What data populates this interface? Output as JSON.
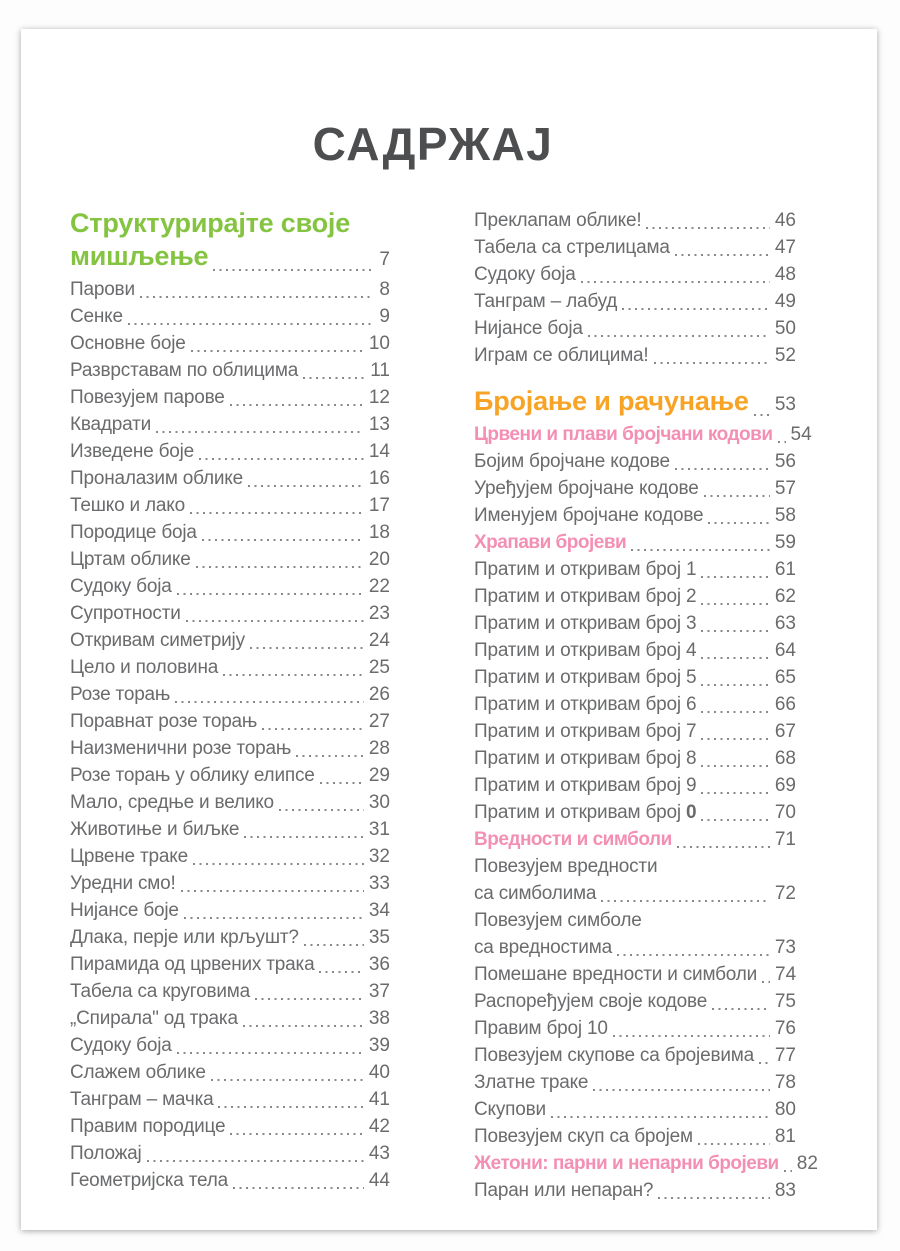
{
  "title": "САДРЖАЈ",
  "colors": {
    "title_gray": "#4d4e50",
    "text_gray": "#6a6b6d",
    "heading_green": "#85c441",
    "heading_orange": "#f7a426",
    "subheading_pink": "#f48fb4"
  },
  "columns": [
    {
      "name": "left",
      "items": [
        {
          "type": "section2",
          "line1": "Структурирајте своје",
          "line2": "мишљење",
          "page": "7",
          "color": "green"
        },
        {
          "type": "entry",
          "label": "Парови",
          "page": "8"
        },
        {
          "type": "entry",
          "label": "Сенке",
          "page": "9"
        },
        {
          "type": "entry",
          "label": "Основне боје",
          "page": "10"
        },
        {
          "type": "entry",
          "label": "Разврставам по облицима",
          "page": "11"
        },
        {
          "type": "entry",
          "label": "Повезујем парове",
          "page": "12"
        },
        {
          "type": "entry",
          "label": "Квадрати",
          "page": "13"
        },
        {
          "type": "entry",
          "label": "Изведене боје",
          "page": "14"
        },
        {
          "type": "entry",
          "label": "Проналазим облике",
          "page": "16"
        },
        {
          "type": "entry",
          "label": "Тешко и лако",
          "page": "17"
        },
        {
          "type": "entry",
          "label": "Породице боја",
          "page": "18"
        },
        {
          "type": "entry",
          "label": "Цртам облике",
          "page": "20"
        },
        {
          "type": "entry",
          "label": "Судоку боја",
          "page": "22"
        },
        {
          "type": "entry",
          "label": "Супротности",
          "page": "23"
        },
        {
          "type": "entry",
          "label": "Откривам симетрију",
          "page": "24"
        },
        {
          "type": "entry",
          "label": "Цело и половина",
          "page": "25"
        },
        {
          "type": "entry",
          "label": "Розе торањ",
          "page": "26"
        },
        {
          "type": "entry",
          "label": "Поравнат розе торањ",
          "page": "27"
        },
        {
          "type": "entry",
          "label": "Наизменични розе торањ",
          "page": "28"
        },
        {
          "type": "entry",
          "label": "Розе торањ у облику елипсе",
          "page": "29"
        },
        {
          "type": "entry",
          "label": "Мало, средње и велико",
          "page": "30"
        },
        {
          "type": "entry",
          "label": "Животиње и биљке",
          "page": "31"
        },
        {
          "type": "entry",
          "label": "Црвене траке",
          "page": "32"
        },
        {
          "type": "entry",
          "label": "Уредни смо!",
          "page": "33"
        },
        {
          "type": "entry",
          "label": "Нијансе боје",
          "page": "34"
        },
        {
          "type": "entry",
          "label": "Длака, перје или крљушт?",
          "page": "35"
        },
        {
          "type": "entry",
          "label": "Пирамида од црвених трака",
          "page": "36"
        },
        {
          "type": "entry",
          "label": "Табела са круговима",
          "page": "37"
        },
        {
          "type": "entry",
          "label": "„Спирала\" од трака",
          "page": "38"
        },
        {
          "type": "entry",
          "label": "Судоку боја",
          "page": "39"
        },
        {
          "type": "entry",
          "label": "Слажем облике",
          "page": "40"
        },
        {
          "type": "entry",
          "label": "Танграм – мачка",
          "page": "41"
        },
        {
          "type": "entry",
          "label": "Правим породице",
          "page": "42"
        },
        {
          "type": "entry",
          "label": "Положај",
          "page": "43"
        },
        {
          "type": "entry",
          "label": "Геометријска тела",
          "page": "44"
        }
      ]
    },
    {
      "name": "right",
      "items": [
        {
          "type": "entry",
          "label": "Преклапам облике!",
          "page": "46"
        },
        {
          "type": "entry",
          "label": "Табела са стрелицама",
          "page": "47"
        },
        {
          "type": "entry",
          "label": "Судоку боја",
          "page": "48"
        },
        {
          "type": "entry",
          "label": "Танграм – лабуд",
          "page": "49"
        },
        {
          "type": "entry",
          "label": "Нијансе боја",
          "page": "50"
        },
        {
          "type": "entry",
          "label": "Играм се облицима!",
          "page": "52"
        },
        {
          "type": "section",
          "label": "Бројање и рачунање",
          "page": "53",
          "color": "orange"
        },
        {
          "type": "sub",
          "label": "Црвени и плави бројчани кодови",
          "page": "54"
        },
        {
          "type": "entry",
          "label": "Бојим бројчане кодове",
          "page": "56"
        },
        {
          "type": "entry",
          "label": "Уређујем бројчане кодове",
          "page": "57"
        },
        {
          "type": "entry",
          "label": "Именујем бројчане кодове",
          "page": "58"
        },
        {
          "type": "sub",
          "label": "Храпави бројеви",
          "page": "59"
        },
        {
          "type": "entry",
          "label": "Пратим и откривам број 1",
          "page": "61"
        },
        {
          "type": "entry",
          "label": "Пратим и откривам број 2",
          "page": "62"
        },
        {
          "type": "entry",
          "label": "Пратим и откривам број 3",
          "page": "63"
        },
        {
          "type": "entry",
          "label": "Пратим и откривам број 4",
          "page": "64"
        },
        {
          "type": "entry",
          "label": "Пратим и откривам број 5",
          "page": "65"
        },
        {
          "type": "entry",
          "label": "Пратим и откривам број 6",
          "page": "66"
        },
        {
          "type": "entry",
          "label": "Пратим и откривам број 7",
          "page": "67"
        },
        {
          "type": "entry",
          "label": "Пратим и откривам број 8",
          "page": "68"
        },
        {
          "type": "entry",
          "label": "Пратим и откривам број 9",
          "page": "69"
        },
        {
          "type": "entry",
          "label": "Пратим и откривам број ",
          "bold": "0",
          "page": "70"
        },
        {
          "type": "sub",
          "label": "Вредности и симболи",
          "page": "71"
        },
        {
          "type": "entry2",
          "line1": "Повезујем вредности",
          "line2": "са симболима",
          "page": "72"
        },
        {
          "type": "entry2",
          "line1": "Повезујем симболе",
          "line2": "са вредностима",
          "page": "73"
        },
        {
          "type": "entry",
          "label": "Помешане вредности и симболи",
          "page": "74"
        },
        {
          "type": "entry",
          "label": "Распоређујем своје кодове",
          "page": "75"
        },
        {
          "type": "entry",
          "label": "Правим број 10",
          "page": "76"
        },
        {
          "type": "entry",
          "label": "Повезујем скупове са бројевима",
          "page": "77"
        },
        {
          "type": "entry",
          "label": "Златне траке",
          "page": "78"
        },
        {
          "type": "entry",
          "label": "Скупови",
          "page": "80"
        },
        {
          "type": "entry",
          "label": "Повезујем скуп са бројем",
          "page": "81"
        },
        {
          "type": "sub",
          "label": "Жетони: парни и непарни бројеви",
          "page": "82"
        },
        {
          "type": "entry",
          "label": "Паран или непаран?",
          "page": "83"
        }
      ]
    }
  ]
}
